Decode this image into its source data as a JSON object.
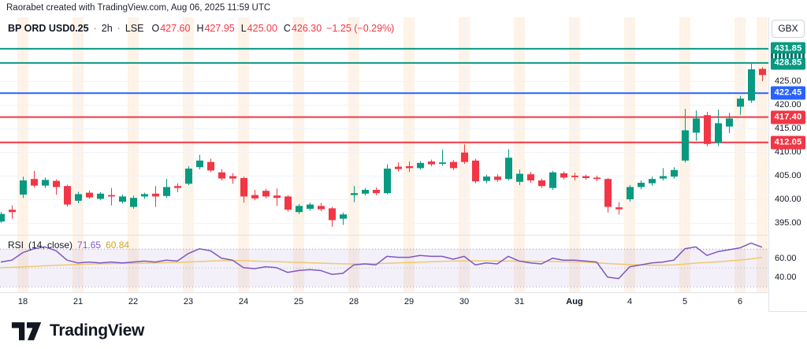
{
  "attribution": "Raorabet created with TradingView.com, Aug 06, 2025 11:59 UTC",
  "legend": {
    "symbol": "BP ORD USD0.25",
    "separator": "·",
    "interval": "2h",
    "exchange": "LSE",
    "ohlc": [
      {
        "label": "O",
        "value": "427.60"
      },
      {
        "label": "H",
        "value": "427.95"
      },
      {
        "label": "L",
        "value": "425.00"
      },
      {
        "label": "C",
        "value": "426.30"
      }
    ],
    "change": "−1.25 (−0.29%)"
  },
  "rsi_legend": {
    "title": "RSI",
    "params": "(14, close)",
    "value": "71.65",
    "ma_value": "60.84"
  },
  "price_axis": {
    "currency_button": "GBX"
  },
  "footer": {
    "brand": "TradingView"
  },
  "colors": {
    "up": "#089981",
    "down": "#f23645",
    "text": "#131722",
    "muted_text": "#787b86",
    "grid": "#f0f3fa",
    "axis_border": "#e0e3eb",
    "session_stripe": "rgba(249,164,60,0.13)",
    "rsi_line": "#7e57c2",
    "rsi_ma": "#f0c96a",
    "rsi_ma_text": "#d6a325",
    "rsi_band_fill": "rgba(126,87,194,0.09)",
    "band_dash": "#787b86"
  },
  "chart_data": {
    "type": "candlestick",
    "interval": "2h",
    "ylim": [
      392.5,
      438.5
    ],
    "yticks": [
      {
        "label": "425.00",
        "value": 425
      },
      {
        "label": "420.00",
        "value": 420
      },
      {
        "label": "415.00",
        "value": 415
      },
      {
        "label": "410.00",
        "value": 410
      },
      {
        "label": "405.00",
        "value": 405
      },
      {
        "label": "400.00",
        "value": 400
      },
      {
        "label": "395.00",
        "value": 395
      }
    ],
    "levels": [
      {
        "label": "431.85",
        "price": 431.85,
        "color": "#089981"
      },
      {
        "label": "428.85",
        "price": 428.85,
        "color": "#089981"
      },
      {
        "label": "422.45",
        "price": 422.45,
        "color": "#2962ff"
      },
      {
        "label": "417.40",
        "price": 417.4,
        "color": "#f23645"
      },
      {
        "label": "412.05",
        "price": 412.05,
        "color": "#f23645"
      }
    ],
    "x_labels": [
      {
        "text": "18",
        "index": 2
      },
      {
        "text": "21",
        "index": 7
      },
      {
        "text": "22",
        "index": 12
      },
      {
        "text": "23",
        "index": 17
      },
      {
        "text": "24",
        "index": 22
      },
      {
        "text": "25",
        "index": 27
      },
      {
        "text": "28",
        "index": 32
      },
      {
        "text": "29",
        "index": 37
      },
      {
        "text": "30",
        "index": 42
      },
      {
        "text": "31",
        "index": 47
      },
      {
        "text": "Aug",
        "index": 52,
        "bold": true
      },
      {
        "text": "4",
        "index": 57
      },
      {
        "text": "5",
        "index": 62
      },
      {
        "text": "6",
        "index": 67
      }
    ],
    "extra_stripe_indices": [
      69
    ],
    "candle_columns": [
      "open",
      "high",
      "low",
      "close"
    ],
    "candles": [
      [
        395.3,
        397.3,
        395.0,
        396.9
      ],
      [
        397.8,
        398.7,
        395.9,
        397.3
      ],
      [
        401.0,
        404.8,
        400.3,
        404.0
      ],
      [
        404.3,
        406.0,
        402.5,
        402.9
      ],
      [
        402.9,
        404.6,
        402.4,
        404.1
      ],
      [
        403.9,
        404.2,
        401.0,
        402.6
      ],
      [
        402.8,
        403.1,
        398.5,
        398.9
      ],
      [
        399.7,
        401.6,
        399.2,
        401.1
      ],
      [
        401.4,
        401.9,
        400.1,
        400.4
      ],
      [
        400.1,
        401.5,
        399.8,
        401.2
      ],
      [
        400.9,
        402.4,
        398.7,
        400.6
      ],
      [
        399.5,
        401.0,
        399.1,
        400.6
      ],
      [
        398.4,
        400.8,
        398.0,
        400.3
      ],
      [
        400.6,
        401.4,
        400.1,
        401.1
      ],
      [
        401.2,
        402.8,
        398.4,
        400.6
      ],
      [
        400.7,
        404.3,
        400.3,
        402.6
      ],
      [
        402.8,
        403.4,
        401.5,
        402.4
      ],
      [
        403.3,
        407.0,
        403.0,
        406.5
      ],
      [
        406.8,
        409.4,
        406.3,
        408.2
      ],
      [
        407.9,
        408.6,
        405.8,
        406.1
      ],
      [
        405.7,
        406.4,
        404.0,
        404.4
      ],
      [
        404.9,
        405.5,
        403.3,
        404.4
      ],
      [
        404.5,
        404.8,
        399.3,
        400.6
      ],
      [
        400.9,
        402.0,
        399.8,
        400.2
      ],
      [
        401.8,
        402.2,
        400.2,
        400.6
      ],
      [
        400.8,
        402.3,
        398.6,
        400.3
      ],
      [
        400.6,
        400.9,
        397.4,
        397.8
      ],
      [
        397.3,
        399.0,
        396.9,
        398.6
      ],
      [
        398.0,
        399.3,
        397.6,
        398.9
      ],
      [
        398.6,
        399.2,
        397.5,
        397.9
      ],
      [
        398.1,
        398.4,
        394.2,
        395.6
      ],
      [
        395.9,
        397.2,
        394.6,
        396.8
      ],
      [
        400.9,
        402.8,
        399.4,
        401.3
      ],
      [
        401.2,
        402.4,
        400.8,
        402.0
      ],
      [
        402.0,
        402.5,
        400.9,
        401.3
      ],
      [
        401.3,
        407.4,
        401.1,
        406.5
      ],
      [
        406.9,
        407.8,
        405.9,
        406.4
      ],
      [
        407.0,
        408.0,
        405.8,
        406.6
      ],
      [
        406.6,
        408.1,
        406.3,
        407.7
      ],
      [
        408.0,
        408.4,
        407.0,
        407.4
      ],
      [
        407.5,
        410.5,
        407.1,
        407.8
      ],
      [
        407.9,
        408.3,
        406.2,
        406.6
      ],
      [
        409.9,
        411.6,
        407.5,
        407.9
      ],
      [
        408.2,
        408.6,
        403.4,
        403.8
      ],
      [
        403.9,
        405.2,
        403.4,
        404.8
      ],
      [
        404.8,
        405.3,
        403.7,
        404.1
      ],
      [
        404.3,
        410.6,
        404.0,
        408.8
      ],
      [
        403.7,
        406.3,
        403.0,
        405.4
      ],
      [
        405.3,
        405.8,
        403.5,
        404.0
      ],
      [
        404.0,
        404.4,
        402.4,
        402.8
      ],
      [
        402.4,
        406.0,
        402.0,
        405.7
      ],
      [
        405.5,
        405.9,
        404.2,
        404.6
      ],
      [
        405.0,
        405.6,
        404.0,
        404.7
      ],
      [
        404.9,
        405.2,
        404.1,
        404.5
      ],
      [
        404.6,
        405.0,
        403.8,
        404.3
      ],
      [
        404.3,
        404.5,
        397.2,
        398.4
      ],
      [
        398.3,
        399.4,
        396.8,
        397.9
      ],
      [
        400.0,
        403.0,
        399.5,
        402.6
      ],
      [
        402.6,
        404.0,
        402.1,
        403.5
      ],
      [
        403.4,
        404.8,
        402.9,
        404.3
      ],
      [
        404.4,
        406.6,
        404.0,
        404.9
      ],
      [
        404.8,
        406.8,
        404.4,
        406.2
      ],
      [
        408.2,
        419.1,
        407.8,
        414.6
      ],
      [
        414.1,
        418.8,
        412.4,
        417.1
      ],
      [
        417.8,
        418.5,
        411.2,
        411.7
      ],
      [
        411.9,
        419.0,
        411.3,
        416.1
      ],
      [
        415.4,
        418.3,
        414.0,
        417.1
      ],
      [
        419.6,
        421.9,
        417.9,
        421.3
      ],
      [
        420.9,
        428.7,
        420.4,
        427.5
      ],
      [
        427.6,
        427.95,
        425.0,
        426.3
      ]
    ],
    "rsi": {
      "length": 14,
      "source": "close",
      "ylim": [
        24,
        84
      ],
      "bands": [
        70,
        50,
        30
      ],
      "yticks": [
        {
          "label": "60.00",
          "value": 60
        },
        {
          "label": "40.00",
          "value": 40
        }
      ],
      "values": [
        56,
        58,
        66,
        70,
        72,
        68,
        58,
        55,
        56,
        55,
        56,
        55,
        56,
        57,
        56,
        58,
        57,
        65,
        70,
        68,
        60,
        58,
        50,
        49,
        51,
        50,
        45,
        47,
        48,
        47,
        43,
        44,
        53,
        54,
        53,
        62,
        61,
        61,
        63,
        62,
        62,
        59,
        62,
        53,
        55,
        54,
        62,
        57,
        55,
        54,
        60,
        58,
        58,
        57,
        56,
        40,
        38.5,
        51,
        53,
        55,
        56,
        58,
        70,
        72,
        63,
        67,
        69,
        71,
        76,
        71.65
      ],
      "ma": [
        50.0,
        50.4,
        50.9,
        51.4,
        52.0,
        52.5,
        53.0,
        53.4,
        53.8,
        54.1,
        54.3,
        54.5,
        54.6,
        54.8,
        55.0,
        55.3,
        55.6,
        56.0,
        56.5,
        57.0,
        57.3,
        57.4,
        57.3,
        57.0,
        56.7,
        56.4,
        56.0,
        55.6,
        55.2,
        54.8,
        54.4,
        54.1,
        54.0,
        54.1,
        54.3,
        54.7,
        55.1,
        55.5,
        55.9,
        56.3,
        56.7,
        57.0,
        57.2,
        57.3,
        57.2,
        57.1,
        57.0,
        56.9,
        56.8,
        56.7,
        56.6,
        56.4,
        56.2,
        55.9,
        55.2,
        54.4,
        53.8,
        53.3,
        52.9,
        52.7,
        52.7,
        53.0,
        53.8,
        54.8,
        55.6,
        56.3,
        57.1,
        58.1,
        59.3,
        60.84
      ]
    }
  }
}
